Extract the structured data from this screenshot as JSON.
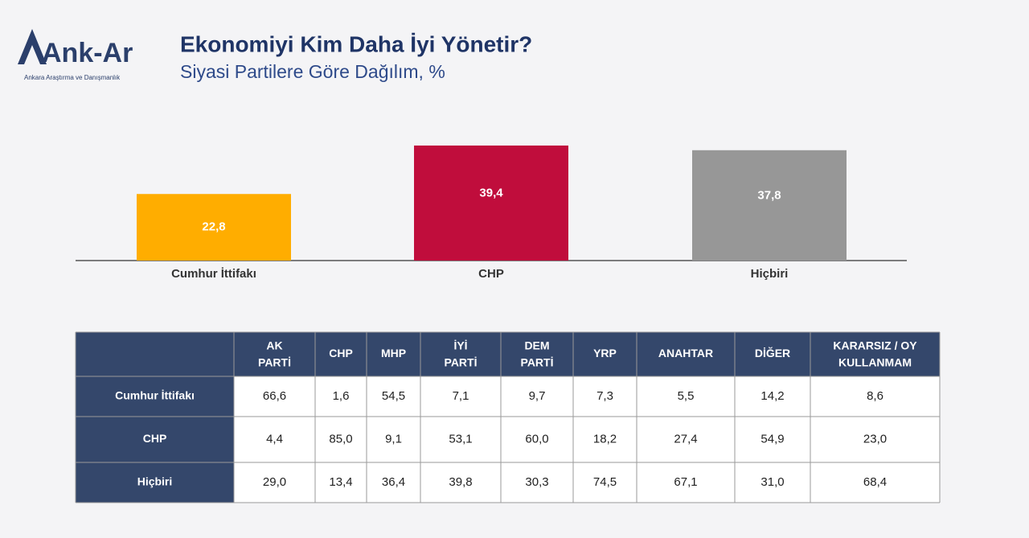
{
  "header": {
    "logo": "Ank-Ar",
    "logo_subtitle": "Ankara Araştırma ve Danışmanlık",
    "title": "Ekonomiyi Kim Daha İyi Yönetir?",
    "subtitle": "Siyasi Partilere Göre Dağılım, %"
  },
  "chart_data": {
    "type": "bar",
    "categories": [
      "Cumhur İttifakı",
      "CHP",
      "Hiçbiri"
    ],
    "values": [
      22.8,
      39.4,
      37.8
    ],
    "value_labels": [
      "22,8",
      "39,4",
      "37,8"
    ],
    "colors": [
      "#ffad00",
      "#c00d3c",
      "#979797"
    ]
  },
  "table": {
    "columns": [
      "AK PARTİ",
      "CHP",
      "MHP",
      "İYİ PARTİ",
      "DEM PARTİ",
      "YRP",
      "ANAHTAR",
      "DİĞER",
      "KARARSIZ / OY KULLANMAM"
    ],
    "row_labels": [
      "Cumhur İttifakı",
      "CHP",
      "Hiçbiri"
    ],
    "rows": [
      [
        "66,6",
        "1,6",
        "54,5",
        "7,1",
        "9,7",
        "7,3",
        "5,5",
        "14,2",
        "8,6"
      ],
      [
        "4,4",
        "85,0",
        "9,1",
        "53,1",
        "60,0",
        "18,2",
        "27,4",
        "54,9",
        "23,0"
      ],
      [
        "29,0",
        "13,4",
        "36,4",
        "39,8",
        "30,3",
        "74,5",
        "67,1",
        "31,0",
        "68,4"
      ]
    ]
  }
}
